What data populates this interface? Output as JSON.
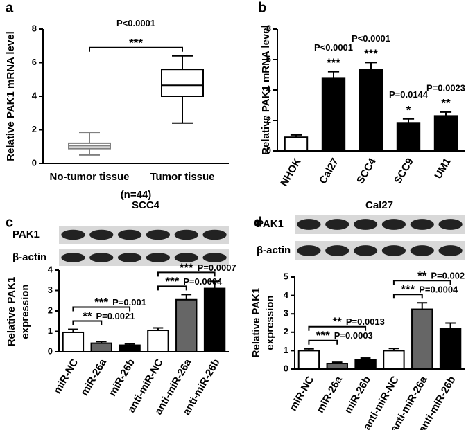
{
  "chart_data": [
    {
      "panel": "a",
      "type": "box",
      "y_label": "Relative PAK1 mRNA level",
      "categories": [
        "No-tumor tissue",
        "Tumor tissue"
      ],
      "x_note": "(n=44)",
      "boxes": [
        {
          "whisker_low": 0.5,
          "q1": 0.88,
          "median": 1.05,
          "q3": 1.2,
          "whisker_high": 1.85,
          "color": "#808080"
        },
        {
          "whisker_low": 2.4,
          "q1": 4.0,
          "median": 4.65,
          "q3": 5.6,
          "whisker_high": 6.4,
          "color": "#000000"
        }
      ],
      "ylim": [
        0,
        8
      ],
      "yticks": [
        0,
        2,
        4,
        6,
        8
      ],
      "comparisons": [
        {
          "from": 0,
          "to": 1,
          "stars": "***",
          "p": "P<0.0001"
        }
      ]
    },
    {
      "panel": "b",
      "type": "bar",
      "y_label": "Relative PAK1 mRNA level",
      "categories": [
        "NHOK",
        "Cal27",
        "SCC4",
        "SCC9",
        "UM1"
      ],
      "values": [
        0.9,
        4.8,
        5.35,
        1.85,
        2.3
      ],
      "errors": [
        0.15,
        0.4,
        0.45,
        0.25,
        0.25
      ],
      "colors": [
        "#ffffff",
        "#000000",
        "#000000",
        "#000000",
        "#000000"
      ],
      "ylim": [
        0,
        8
      ],
      "yticks": [
        0,
        2,
        4,
        6,
        8
      ],
      "annotations": [
        {
          "index": 1,
          "stars": "***",
          "p": "P<0.0001"
        },
        {
          "index": 2,
          "stars": "***",
          "p": "P<0.0001"
        },
        {
          "index": 3,
          "stars": "*",
          "p": "P=0.0144"
        },
        {
          "index": 4,
          "stars": "**",
          "p": "P=0.0023"
        }
      ]
    },
    {
      "panel": "c",
      "type": "bar",
      "title": "SCC4",
      "blot_labels": [
        "PAK1",
        "β-actin"
      ],
      "y_label": [
        "Relative PAK1",
        "expression"
      ],
      "categories": [
        "miR-NC",
        "miR-26a",
        "miR-26b",
        "anti-miR-NC",
        "anti-miR-26a",
        "anti-miR-26b"
      ],
      "values": [
        0.95,
        0.42,
        0.32,
        1.05,
        2.55,
        3.1
      ],
      "errors": [
        0.15,
        0.08,
        0.07,
        0.12,
        0.25,
        0.35
      ],
      "colors": [
        "#ffffff",
        "#666666",
        "#000000",
        "#ffffff",
        "#666666",
        "#000000"
      ],
      "ylim": [
        0,
        4
      ],
      "yticks": [
        0,
        1,
        2,
        3,
        4
      ],
      "comparisons": [
        {
          "from": 0,
          "to": 1,
          "stars": "**",
          "p": "P=0.0021"
        },
        {
          "from": 0,
          "to": 2,
          "stars": "***",
          "p": "P=0.001"
        },
        {
          "from": 3,
          "to": 4,
          "stars": "***",
          "p": "P=0.0004"
        },
        {
          "from": 3,
          "to": 5,
          "stars": "***",
          "p": "P=0.0007"
        }
      ]
    },
    {
      "panel": "d",
      "type": "bar",
      "title": "Cal27",
      "blot_labels": [
        "PAK1",
        "β-actin"
      ],
      "y_label": [
        "Relative PAK1",
        "expression"
      ],
      "categories": [
        "miR-NC",
        "miR-26a",
        "miR-26b",
        "anti-miR-NC",
        "anti-miR-26a",
        "anti-miR-26b"
      ],
      "values": [
        1.0,
        0.3,
        0.5,
        1.0,
        3.25,
        2.2
      ],
      "errors": [
        0.1,
        0.07,
        0.1,
        0.12,
        0.35,
        0.3
      ],
      "colors": [
        "#ffffff",
        "#666666",
        "#000000",
        "#ffffff",
        "#666666",
        "#000000"
      ],
      "ylim": [
        0,
        5
      ],
      "yticks": [
        0,
        1,
        2,
        3,
        4,
        5
      ],
      "comparisons": [
        {
          "from": 0,
          "to": 1,
          "stars": "***",
          "p": "P=0.0003"
        },
        {
          "from": 0,
          "to": 2,
          "stars": "**",
          "p": "P=0.0013"
        },
        {
          "from": 3,
          "to": 4,
          "stars": "***",
          "p": "P=0.0004"
        },
        {
          "from": 3,
          "to": 5,
          "stars": "**",
          "p": "P=0.002"
        }
      ]
    }
  ]
}
